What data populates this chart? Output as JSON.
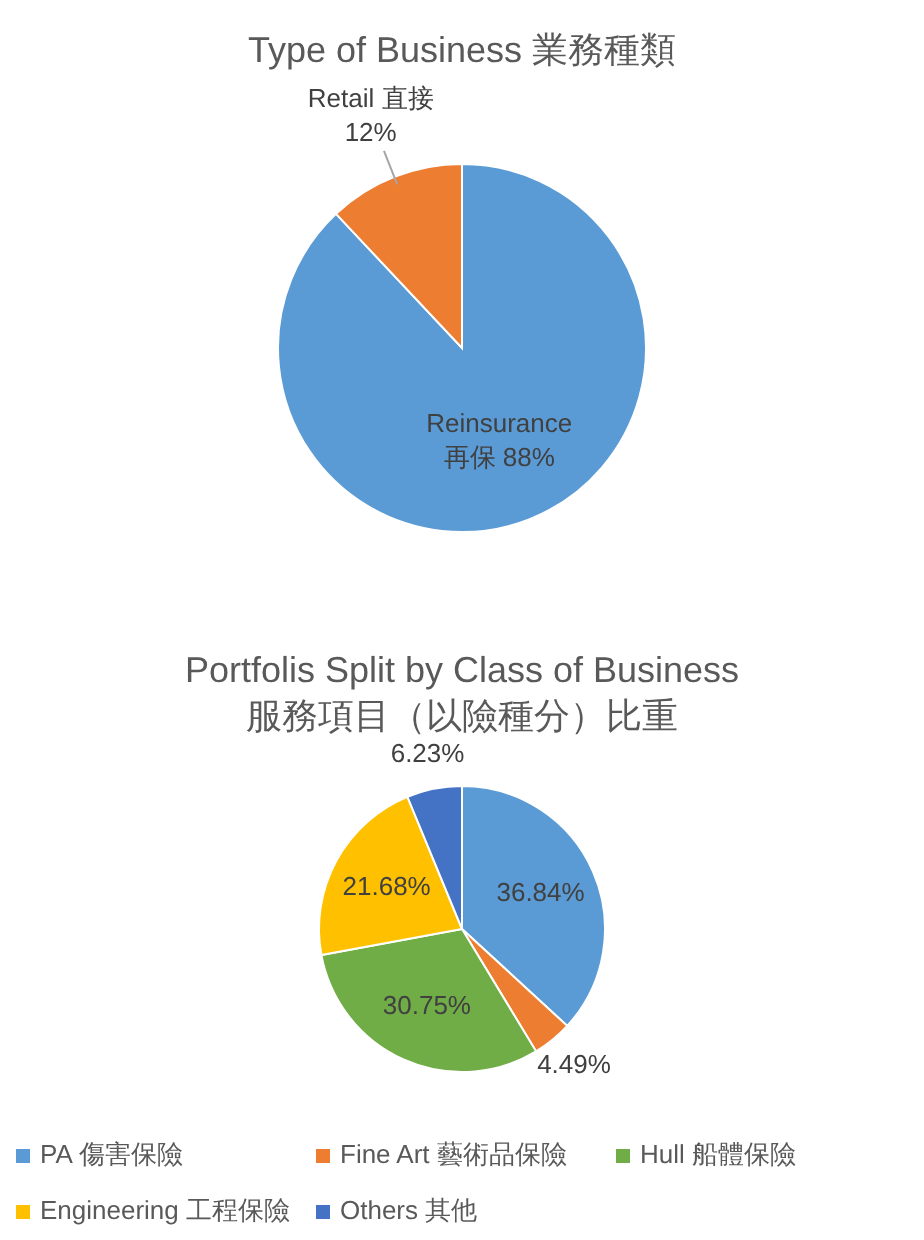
{
  "chart_data": [
    {
      "type": "pie",
      "title": "Type of Business 業務種類",
      "categories": [
        "Reinsurance 再保",
        "Retail 直接"
      ],
      "values": [
        88,
        12
      ],
      "colors": [
        "#5b9bd5",
        "#ed7d31"
      ],
      "value_labels": [
        "88%",
        "12%"
      ],
      "legend": false
    },
    {
      "type": "pie",
      "title": "Portfolis Split by Class of Business\n服務項目（以險種分）比重",
      "categories": [
        "PA 傷害保險",
        "Fine Art 藝術品保險",
        "Hull 船體保險",
        "Engineering 工程保險",
        "Others 其他"
      ],
      "values": [
        36.84,
        4.49,
        30.75,
        21.68,
        6.23
      ],
      "colors": [
        "#5b9bd5",
        "#ed7d31",
        "#70ad47",
        "#ffc000",
        "#4472c4"
      ],
      "value_labels": [
        "36.84%",
        "4.49%",
        "30.75%",
        "21.68%",
        "6.23%"
      ],
      "legend": "bottom"
    }
  ]
}
